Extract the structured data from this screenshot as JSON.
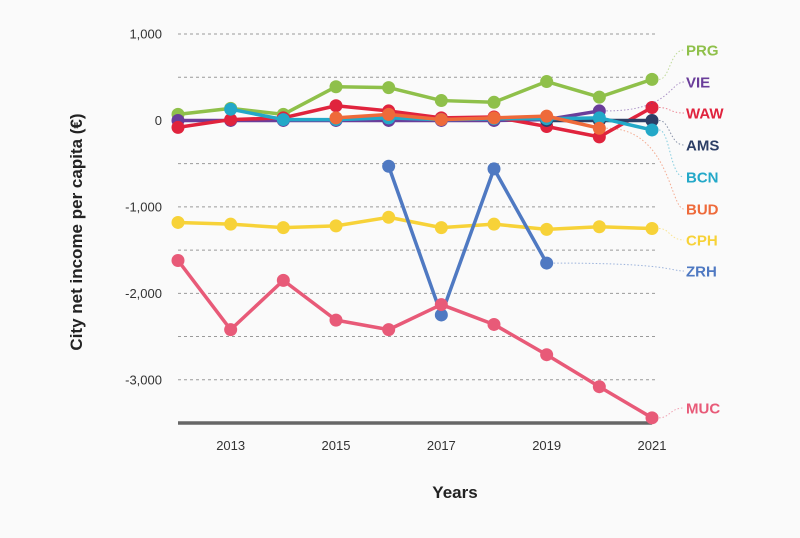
{
  "chart_data": {
    "type": "line",
    "title": "",
    "xlabel": "Years",
    "ylabel": "City net income per capita (€)",
    "x": [
      2012,
      2013,
      2014,
      2015,
      2016,
      2017,
      2018,
      2019,
      2020,
      2021
    ],
    "xticks": [
      2013,
      2015,
      2017,
      2019,
      2021
    ],
    "xtick_labels": [
      "2013",
      "2015",
      "2017",
      "2019",
      "2021"
    ],
    "yticks": [
      1000,
      0,
      -1000,
      -2000,
      -3000
    ],
    "ytick_labels": [
      "1,000",
      "0",
      "-1,000",
      "-2,000",
      "-3,000"
    ],
    "ylim": [
      -3500,
      1000
    ],
    "grid": "horizontal dashed every 500",
    "legend": "right (direct labels)",
    "series": [
      {
        "name": "PRG",
        "color": "#8fc04a",
        "values": [
          70,
          140,
          70,
          390,
          380,
          230,
          210,
          450,
          270,
          475
        ]
      },
      {
        "name": "VIE",
        "color": "#6a3d9a",
        "values": [
          0,
          0,
          0,
          0,
          0,
          0,
          0,
          10,
          110,
          null
        ]
      },
      {
        "name": "WAW",
        "color": "#e0233d",
        "values": [
          -80,
          10,
          30,
          170,
          110,
          30,
          40,
          -70,
          -190,
          150
        ]
      },
      {
        "name": "AMS",
        "color": "#2c3e66",
        "values": [
          null,
          null,
          null,
          null,
          null,
          null,
          null,
          0,
          0,
          0
        ]
      },
      {
        "name": "BCN",
        "color": "#23a8c8",
        "values": [
          null,
          130,
          10,
          10,
          30,
          10,
          20,
          20,
          30,
          -110
        ]
      },
      {
        "name": "BUD",
        "color": "#ee6a3a",
        "values": [
          null,
          null,
          null,
          30,
          70,
          10,
          30,
          50,
          -90,
          null
        ]
      },
      {
        "name": "CPH",
        "color": "#f7d238",
        "values": [
          -1180,
          -1200,
          -1240,
          -1220,
          -1120,
          -1240,
          -1200,
          -1260,
          -1230,
          -1250
        ]
      },
      {
        "name": "ZRH",
        "color": "#4f79c2",
        "values": [
          null,
          null,
          null,
          null,
          -530,
          -2250,
          -560,
          -1650,
          null,
          null
        ]
      },
      {
        "name": "MUC",
        "color": "#e85a78",
        "values": [
          -1620,
          -2420,
          -1850,
          -2310,
          -2420,
          -2130,
          -2360,
          -2710,
          -3080,
          -3440
        ]
      }
    ]
  }
}
